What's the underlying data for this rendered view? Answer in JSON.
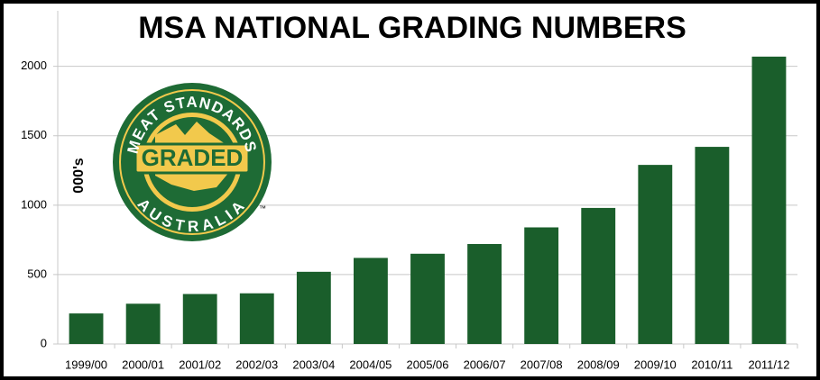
{
  "chart_data": {
    "type": "bar",
    "title": "MSA NATIONAL GRADING NUMBERS",
    "y_label": "000's",
    "categories": [
      "1999/00",
      "2000/01",
      "2001/02",
      "2002/03",
      "2003/04",
      "2004/05",
      "2005/06",
      "2006/07",
      "2007/08",
      "2008/09",
      "2009/10",
      "2010/11",
      "2011/12"
    ],
    "values": [
      220,
      290,
      360,
      365,
      520,
      620,
      650,
      720,
      840,
      980,
      1290,
      1420,
      2070
    ],
    "color": "#1a5e2b",
    "ylim": [
      0,
      2400
    ],
    "yticks": [
      0,
      500,
      1000,
      1500,
      2000
    ],
    "grid": true,
    "logo": {
      "top_text": "MEAT STANDARDS",
      "center_text": "GRADED",
      "bottom_text": "AUSTRALIA",
      "mark": "™"
    }
  }
}
